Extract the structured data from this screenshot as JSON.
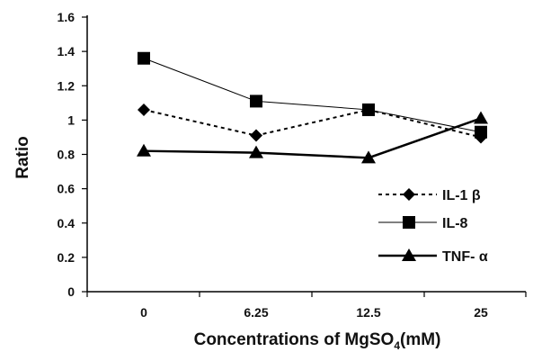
{
  "chart_data": {
    "type": "line",
    "categories": [
      "0",
      "6.25",
      "12.5",
      "25"
    ],
    "ylim": [
      0,
      1.6
    ],
    "yticks": [
      0,
      0.2,
      0.4,
      0.6,
      0.8,
      1,
      1.2,
      1.4,
      1.6
    ],
    "ytick_labels": [
      "0",
      "0.2",
      "0.4",
      "0.6",
      "0.8",
      "1",
      "1.2",
      "1.4",
      "1.6"
    ],
    "ylabel": "Ratio",
    "xlabel": "Concentrations of MgSO",
    "xlabel_subscript": "4",
    "xlabel_suffix": "(mM)",
    "grid": false,
    "legend_position": "bottom-right",
    "series": [
      {
        "name": "IL-1 β",
        "values": [
          1.06,
          0.91,
          1.06,
          0.9
        ],
        "line": "dotted",
        "marker": "diamond",
        "color": "#000000"
      },
      {
        "name": "IL-8",
        "values": [
          1.36,
          1.11,
          1.06,
          0.93
        ],
        "line": "thin",
        "marker": "square",
        "color": "#000000"
      },
      {
        "name": "TNF- α",
        "values": [
          0.82,
          0.81,
          0.78,
          1.01
        ],
        "line": "thick",
        "marker": "triangle",
        "color": "#000000"
      }
    ]
  }
}
